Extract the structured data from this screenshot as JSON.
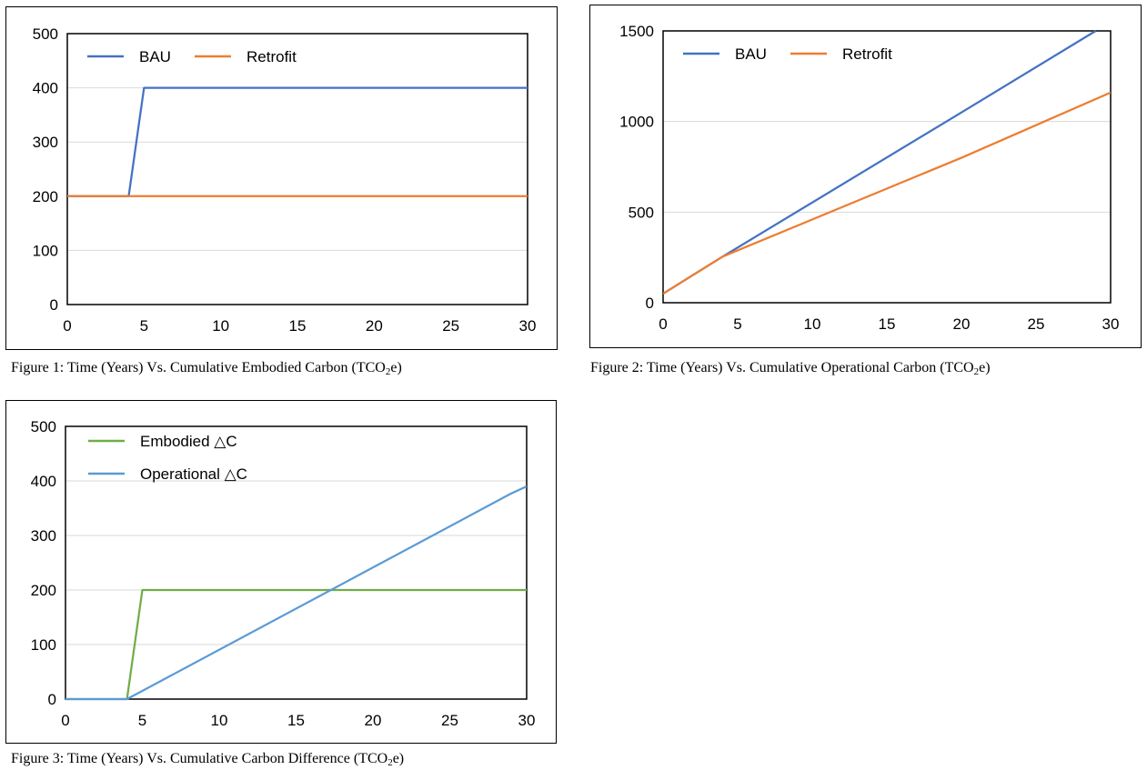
{
  "captions": {
    "fig1": {
      "text": "Figure 1: Time (Years) Vs. Cumulative Embodied Carbon (TCO",
      "sub": "2",
      "after": "e)"
    },
    "fig2": {
      "text": "Figure 2: Time (Years) Vs. Cumulative Operational Carbon (TCO",
      "sub": "2",
      "after": "e)"
    },
    "fig3": {
      "text": "Figure 3: Time (Years) Vs. Cumulative Carbon Difference (TCO",
      "sub": "2",
      "after": "e)"
    }
  },
  "chart_data": [
    {
      "type": "line",
      "title": "",
      "xlabel": "",
      "ylabel": "",
      "xlim": [
        0,
        30
      ],
      "ylim": [
        0,
        500
      ],
      "xticks": [
        "0",
        "5",
        "10",
        "15",
        "20",
        "25",
        "30"
      ],
      "yticks": [
        "0",
        "100",
        "200",
        "300",
        "400",
        "500"
      ],
      "grid": true,
      "legend": "top-left",
      "series": [
        {
          "name": "BAU",
          "color": "#4472C4",
          "x": [
            0,
            4,
            5,
            30
          ],
          "y": [
            200,
            200,
            400,
            400
          ]
        },
        {
          "name": "Retrofit",
          "color": "#ED7D31",
          "x": [
            0,
            30
          ],
          "y": [
            200,
            200
          ]
        }
      ]
    },
    {
      "type": "line",
      "title": "",
      "xlabel": "",
      "ylabel": "",
      "xlim": [
        0,
        30
      ],
      "ylim": [
        0,
        1500
      ],
      "xticks": [
        "0",
        "5",
        "10",
        "15",
        "20",
        "25",
        "30"
      ],
      "yticks": [
        "0",
        "500",
        "1000",
        "1500"
      ],
      "grid": true,
      "legend": "top-left",
      "series": [
        {
          "name": "BAU",
          "color": "#4472C4",
          "x": [
            0,
            4,
            20,
            29
          ],
          "y": [
            50,
            255,
            1050,
            1500
          ]
        },
        {
          "name": "Retrofit",
          "color": "#ED7D31",
          "x": [
            0,
            4,
            20,
            30
          ],
          "y": [
            50,
            255,
            800,
            1160
          ]
        }
      ]
    },
    {
      "type": "line",
      "title": "",
      "xlabel": "",
      "ylabel": "",
      "xlim": [
        0,
        30
      ],
      "ylim": [
        0,
        500
      ],
      "xticks": [
        "0",
        "5",
        "10",
        "15",
        "20",
        "25",
        "30"
      ],
      "yticks": [
        "0",
        "100",
        "200",
        "300",
        "400",
        "500"
      ],
      "grid": true,
      "legend": "top-left",
      "series": [
        {
          "name": "Embodied △C",
          "color": "#70AD47",
          "x": [
            0,
            4,
            5,
            30
          ],
          "y": [
            0,
            0,
            200,
            200
          ]
        },
        {
          "name": "Operational △C",
          "color": "#5B9BD5",
          "x": [
            0,
            4,
            29,
            30
          ],
          "y": [
            0,
            0,
            377,
            390
          ]
        }
      ]
    }
  ]
}
